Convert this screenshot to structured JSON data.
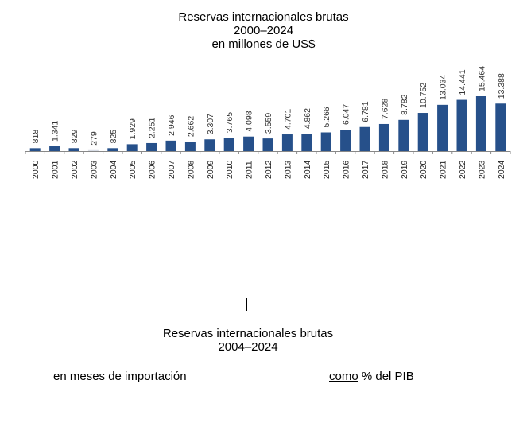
{
  "chart_data": {
    "type": "bar",
    "title": "Reservas internacionales brutas",
    "subtitle": "2000–2024",
    "units": "en millones de US$",
    "categories": [
      "2000",
      "2001",
      "2002",
      "2003",
      "2004",
      "2005",
      "2006",
      "2007",
      "2008",
      "2009",
      "2010",
      "2011",
      "2012",
      "2013",
      "2014",
      "2015",
      "2016",
      "2017",
      "2018",
      "2019",
      "2020",
      "2021",
      "2022",
      "2023",
      "2024"
    ],
    "values": [
      818,
      1341,
      829,
      279,
      825,
      1929,
      2251,
      2946,
      2662,
      3307,
      3765,
      4098,
      3559,
      4701,
      4862,
      5266,
      6047,
      6781,
      7628,
      8782,
      10752,
      13034,
      14441,
      15464,
      13388
    ],
    "labels": [
      "818",
      "1.341",
      "829",
      "279",
      "825",
      "1.929",
      "2.251",
      "2.946",
      "2.662",
      "3.307",
      "3.765",
      "4.098",
      "3.559",
      "4.701",
      "4.862",
      "5.266",
      "6.047",
      "6.781",
      "7.628",
      "8.782",
      "10.752",
      "13.034",
      "14.441",
      "15.464",
      "13.388"
    ],
    "ylim": [
      0,
      15464
    ],
    "grid": false,
    "bar_color": "#26508a"
  },
  "second": {
    "title": "Reservas internacionales brutas",
    "subtitle": "2004–2024",
    "left_label": "en meses de importación",
    "right_label_link": "como",
    "right_label_rest": " % del PIB"
  }
}
